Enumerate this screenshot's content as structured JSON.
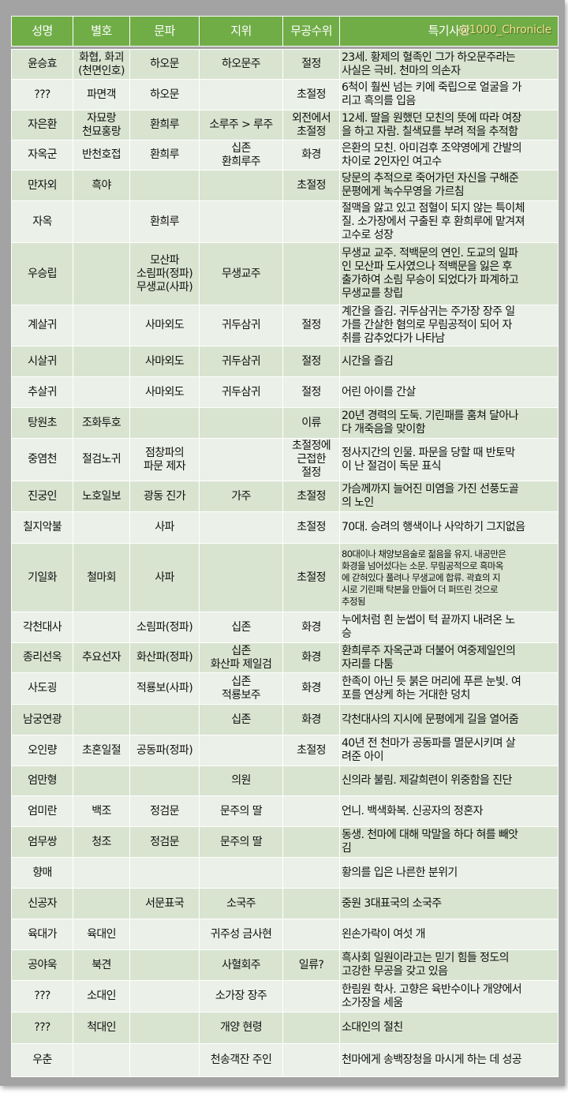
{
  "watermark": "@1000_Chronicle",
  "colors": {
    "header": "#70ad47",
    "row_dark": "#d8e4d0",
    "row_light": "#ebf0e8",
    "frame": "#a3a3a3",
    "watermark": "#f3df8a"
  },
  "headers": [
    "성명",
    "별호",
    "문파",
    "지위",
    "무공수위",
    "특기사항"
  ],
  "rows": [
    [
      "윤승효",
      "화협, 화괴\n(천면인호)",
      "하오문",
      "하오문주",
      "절정",
      "23세. 황제의 혈족인 그가 하오문주라는\n사실은 극비. 천마의 의손자"
    ],
    [
      "???",
      "파면객",
      "하오문",
      "",
      "초절정",
      "6척이 훨씬 넘는 키에 죽립으로 얼굴을 가\n리고 흑의를 입음"
    ],
    [
      "자은환",
      "자묘랑\n천묘홍랑",
      "환희루",
      "소루주 > 루주",
      "외전에서\n초절정",
      "12세. 딸을 원했던 모친의 뜻에 따라 여장\n을 하고 자람. 칠색묘를 부려 적을 추적함"
    ],
    [
      "자옥군",
      "반천호접",
      "환희루",
      "십존\n환희루주",
      "화경",
      "은환의 모친. 아미검후 조약영에게 간발의\n차이로 2인자인 여고수"
    ],
    [
      "만자외",
      "흑야",
      "",
      "",
      "초절정",
      "당문의 추적으로 죽어가던 자신을 구해준\n문평에게 녹수무영을 가르침"
    ],
    [
      "자옥",
      "",
      "환희루",
      "",
      "",
      "절맥을 앓고 있고 점혈이 되지 않는 특이체\n질. 소가장에서 구출된 후 환희루에 맡겨져\n고수로 성장"
    ],
    [
      "우승립",
      "",
      "모산파\n소림파(정파)\n무생교(사파)",
      "무생교주",
      "",
      "무생교 교주. 적백문의 연인. 도교의 일파\n인 모산파 도사였으나 적백문을 잃은 후\n출가하여 소림 무승이 되었다가 파계하고\n무생교를 창립"
    ],
    [
      "계살귀",
      "",
      "사마외도",
      "귀두삼귀",
      "절정",
      "계간을 즐김. 귀두삼귀는 주가장 장주 일\n가를 간살한 혐의로 무림공적이 되어 자\n취를 감추었다가 나타남"
    ],
    [
      "시살귀",
      "",
      "사마외도",
      "귀두삼귀",
      "절정",
      "시간을 즐김"
    ],
    [
      "추살귀",
      "",
      "사마외도",
      "귀두삼귀",
      "절정",
      "어린 아이를 간살"
    ],
    [
      "탕원초",
      "조화투호",
      "",
      "",
      "이류",
      "20년 경력의 도둑. 기린패를 훔쳐 달아나\n다 개죽음을 맞이함"
    ],
    [
      "중염천",
      "절검노귀",
      "점창파의\n파문 제자",
      "",
      "초절정에\n근접한\n절정",
      "정사지간의 인물. 파문을 당할 때 반토막\n이 난 절검이 독문 표식"
    ],
    [
      "진궁인",
      "노호일보",
      "광동 진가",
      "가주",
      "초절정",
      "가슴께까지 늘어진 미염을 가진 선풍도골\n의 노인"
    ],
    [
      "칠지악불",
      "",
      "사파",
      "",
      "초절정",
      "70대. 승려의 행색이나 사악하기 그지없음"
    ],
    [
      "기일화",
      "철마회",
      "사파",
      "",
      "초절정",
      "80대이나 채양보음술로 젊음을 유지. 내공만은\n화경을 넘어섰다는 소문. 무림공적으로 흑마옥\n에 갇혀있다 풀려나 무생교에 합류. 곽효의 지\n시로 기린패 탁본을 만들어 더 퍼뜨린 것으로\n추정됨"
    ],
    [
      "각천대사",
      "",
      "소림파(정파)",
      "십존",
      "화경",
      "누에처럼 흰 눈썹이 턱 끝까지 내려온 노\n승"
    ],
    [
      "종리선옥",
      "추요선자",
      "화산파(정파)",
      "십존\n화산파 제일검",
      "화경",
      "환희루주 자옥군과 더불어 여중제일인의\n자리를 다툼"
    ],
    [
      "사도굉",
      "",
      "적룡보(사파)",
      "십존\n적룡보주",
      "화경",
      "한족이 아닌 듯 붉은 머리에 푸른 눈빛. 여\n포를 연상케 하는 거대한 덩치"
    ],
    [
      "남궁연광",
      "",
      "",
      "십존",
      "화경",
      "각천대사의 지시에 문평에게 길을 열어줌"
    ],
    [
      "오인량",
      "초혼일절",
      "공동파(정파)",
      "",
      "초절정",
      "40년 전 천마가 공동파를 멸문시키며 살\n려준 아이"
    ],
    [
      "엄만형",
      "",
      "",
      "의원",
      "",
      "신의라 불림. 제갈희련이 위중함을 진단"
    ],
    [
      "엄미란",
      "백조",
      "정검문",
      "문주의 딸",
      "",
      "언니. 백색화복. 신공자의 정혼자"
    ],
    [
      "엄무쌍",
      "청조",
      "정검문",
      "문주의 딸",
      "",
      "동생. 천마에 대해 막말을 하다 혀를 빼앗\n김"
    ],
    [
      "향매",
      "",
      "",
      "",
      "",
      "황의를 입은 나른한 분위기"
    ],
    [
      "신공자",
      "",
      "서문표국",
      "소국주",
      "",
      "중원 3대표국의 소국주"
    ],
    [
      "육대가",
      "육대인",
      "",
      "귀주성 금사현",
      "",
      "왼손가락이 여섯 개"
    ],
    [
      "공야욱",
      "북견",
      "",
      "사혈회주",
      "일류?",
      "흑사회 일원이라고는 믿기 힘들 정도의\n고강한 무공을 갖고 있음"
    ],
    [
      "???",
      "소대인",
      "",
      "소가장 장주",
      "",
      "한림원 학사. 고향은 육반수이나 개양에서\n소가장을 세움"
    ],
    [
      "???",
      "척대인",
      "",
      "개양 현령",
      "",
      "소대인의 절친"
    ],
    [
      "우춘",
      "",
      "",
      "천송객잔 주인",
      "",
      "천마에게 송백장청을 마시게 하는 데 성공"
    ]
  ]
}
